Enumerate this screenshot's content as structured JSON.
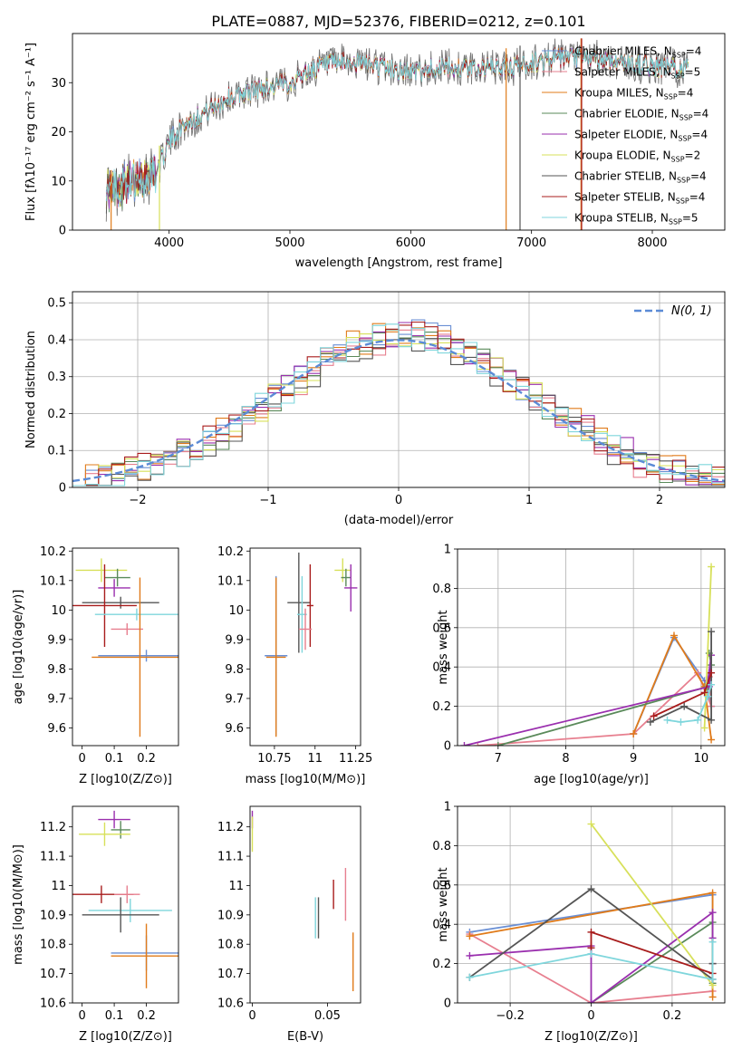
{
  "figure_title": "PLATE=0887, MJD=52376, FIBERID=0212, z=0.101",
  "colors": {
    "Chabrier MILES": "#6a8fd4",
    "Salpeter MILES": "#e77f8f",
    "Kroupa MILES": "#e07b1a",
    "Chabrier ELODIE": "#5a8a5a",
    "Salpeter ELODIE": "#9a2fae",
    "Kroupa ELODIE": "#d7e05a",
    "Chabrier STELIB": "#555555",
    "Salpeter STELIB": "#a81c1c",
    "Kroupa STELIB": "#7fd6dc"
  },
  "chart_data": [
    {
      "id": "spectrum",
      "type": "line",
      "title": "PLATE=0887, MJD=52376, FIBERID=0212, z=0.101",
      "xlabel": "wavelength [Angstrom, rest frame]",
      "ylabel": "Flux [fλ10⁻¹⁷ erg cm⁻² s⁻¹ A⁻¹]",
      "xlim": [
        3200,
        8600
      ],
      "ylim": [
        0,
        40
      ],
      "xticks": [
        4000,
        5000,
        6000,
        7000,
        8000
      ],
      "yticks": [
        0,
        10,
        20,
        30
      ],
      "grid": false,
      "legend_position": "top-right",
      "legend": [
        "Chabrier MILES, N_SSP=4",
        "Salpeter MILES, N_SSP=5",
        "Kroupa MILES, N_SSP=4",
        "Chabrier ELODIE, N_SSP=4",
        "Salpeter ELODIE, N_SSP=4",
        "Kroupa ELODIE, N_SSP=2",
        "Chabrier STELIB, N_SSP=4",
        "Salpeter STELIB, N_SSP=4",
        "Kroupa STELIB, N_SSP=5"
      ],
      "continuum": {
        "x": [
          3500,
          3700,
          3900,
          4000,
          4100,
          4300,
          4500,
          4800,
          5000,
          5200,
          5400,
          5600,
          5800,
          6000,
          6200,
          6500,
          6800,
          7000,
          7200,
          7500,
          7800,
          8100,
          8300
        ],
        "y": [
          8,
          10,
          12,
          18,
          21,
          24,
          27,
          29,
          30,
          33,
          34,
          34,
          33,
          32,
          33,
          33,
          33,
          34,
          35,
          35,
          34,
          33,
          33
        ]
      }
    },
    {
      "id": "residual_histogram",
      "type": "line",
      "xlabel": "(data-model)/error",
      "ylabel": "Normed distribution",
      "xlim": [
        -2.5,
        2.5
      ],
      "ylim": [
        0,
        0.53
      ],
      "xticks": [
        -2,
        -1,
        0,
        1,
        2
      ],
      "yticks": [
        0.0,
        0.1,
        0.2,
        0.3,
        0.4,
        0.5
      ],
      "grid": true,
      "legend_position": "top-right",
      "reference_label": "N(0, 1)",
      "bin_width": 0.1,
      "bin_start": -2.5,
      "series_offsets": [
        0.01,
        -0.02,
        0.015,
        -0.01,
        0.02,
        0.0,
        -0.015,
        0.005,
        -0.005
      ]
    },
    {
      "id": "age_vs_Z",
      "type": "scatter",
      "xlabel": "Z [log10(Z/Z⊙)]",
      "ylabel": "age [log10(age/yr)]",
      "xlim": [
        -0.03,
        0.3
      ],
      "ylim": [
        9.54,
        10.21
      ],
      "xticks": [
        0.0,
        0.1,
        0.2
      ],
      "yticks": [
        9.6,
        9.7,
        9.8,
        9.9,
        10.0,
        10.1,
        10.2
      ],
      "points": [
        {
          "series": "Kroupa ELODIE",
          "x": 0.06,
          "y": 10.135,
          "xerr": 0.08,
          "yerr": 0.04
        },
        {
          "series": "Chabrier ELODIE",
          "x": 0.11,
          "y": 10.11,
          "xerr": 0.04,
          "yerr": 0.03
        },
        {
          "series": "Salpeter ELODIE",
          "x": 0.1,
          "y": 10.075,
          "xerr": 0.05,
          "yerr": 0.03
        },
        {
          "series": "Chabrier STELIB",
          "x": 0.12,
          "y": 10.025,
          "xerr": 0.12,
          "yerr": 0.02
        },
        {
          "series": "Salpeter STELIB",
          "x": 0.07,
          "y": 10.015,
          "xerr": 0.1,
          "yerr": 0.14
        },
        {
          "series": "Kroupa STELIB",
          "x": 0.17,
          "y": 9.985,
          "xerr": 0.13,
          "yerr": 0.02
        },
        {
          "series": "Salpeter MILES",
          "x": 0.14,
          "y": 9.935,
          "xerr": 0.05,
          "yerr": 0.02
        },
        {
          "series": "Chabrier MILES",
          "x": 0.2,
          "y": 9.845,
          "xerr": 0.15,
          "yerr": 0.02
        },
        {
          "series": "Kroupa MILES",
          "x": 0.18,
          "y": 9.84,
          "xerr": 0.15,
          "yerr": 0.27
        }
      ]
    },
    {
      "id": "age_vs_mass",
      "type": "scatter",
      "xlabel": "mass [log10(M/M⊙)]",
      "ylabel": "",
      "xlim": [
        10.6,
        11.28
      ],
      "ylim": [
        9.54,
        10.21
      ],
      "xticks": [
        10.75,
        11.0,
        11.25
      ],
      "yticks": [
        9.6,
        9.7,
        9.8,
        9.9,
        10.0,
        10.1,
        10.2
      ],
      "points": [
        {
          "series": "Kroupa ELODIE",
          "x": 11.17,
          "y": 10.135,
          "xerr": 0.05,
          "yerr": 0.04
        },
        {
          "series": "Chabrier ELODIE",
          "x": 11.19,
          "y": 10.11,
          "xerr": 0.03,
          "yerr": 0.03
        },
        {
          "series": "Salpeter ELODIE",
          "x": 11.22,
          "y": 10.075,
          "xerr": 0.04,
          "yerr": 0.08
        },
        {
          "series": "Chabrier STELIB",
          "x": 10.9,
          "y": 10.025,
          "xerr": 0.07,
          "yerr": 0.17
        },
        {
          "series": "Salpeter STELIB",
          "x": 10.97,
          "y": 10.015,
          "xerr": 0.02,
          "yerr": 0.14
        },
        {
          "series": "Kroupa STELIB",
          "x": 10.92,
          "y": 9.985,
          "xerr": 0.03,
          "yerr": 0.13
        },
        {
          "series": "Salpeter MILES",
          "x": 10.94,
          "y": 9.935,
          "xerr": 0.04,
          "yerr": 0.07
        },
        {
          "series": "Chabrier MILES",
          "x": 10.76,
          "y": 9.845,
          "xerr": 0.07,
          "yerr": 0.27
        },
        {
          "series": "Kroupa MILES",
          "x": 10.76,
          "y": 9.84,
          "xerr": 0.06,
          "yerr": 0.27
        }
      ]
    },
    {
      "id": "weight_vs_age",
      "type": "line",
      "xlabel": "age [log10(age/yr)]",
      "ylabel": "mass weight",
      "xlim": [
        6.4,
        10.35
      ],
      "ylim": [
        0,
        1.0
      ],
      "xticks": [
        7,
        8,
        9,
        10
      ],
      "yticks": [
        0.0,
        0.2,
        0.4,
        0.6,
        0.8,
        1.0
      ],
      "grid": true,
      "series": [
        {
          "name": "Chabrier MILES",
          "x": [
            9.0,
            9.6,
            10.05,
            10.15
          ],
          "y": [
            0.06,
            0.55,
            0.33,
            0.2
          ]
        },
        {
          "name": "Salpeter MILES",
          "x": [
            6.7,
            9.0,
            9.95,
            10.15,
            10.12
          ],
          "y": [
            0.0,
            0.06,
            0.37,
            0.2,
            0.35
          ]
        },
        {
          "name": "Kroupa MILES",
          "x": [
            9.0,
            9.6,
            10.05,
            10.15
          ],
          "y": [
            0.06,
            0.56,
            0.3,
            0.03
          ]
        },
        {
          "name": "Chabrier ELODIE",
          "x": [
            7.0,
            10.1,
            10.15,
            10.12
          ],
          "y": [
            0.0,
            0.3,
            0.41,
            0.47
          ]
        },
        {
          "name": "Salpeter ELODIE",
          "x": [
            6.5,
            10.12,
            10.15,
            10.1
          ],
          "y": [
            0.0,
            0.3,
            0.46,
            0.33
          ]
        },
        {
          "name": "Kroupa ELODIE",
          "x": [
            10.05,
            10.15
          ],
          "y": [
            0.09,
            0.91
          ]
        },
        {
          "name": "Chabrier STELIB",
          "x": [
            9.25,
            9.75,
            10.15,
            10.15
          ],
          "y": [
            0.12,
            0.2,
            0.13,
            0.58
          ]
        },
        {
          "name": "Salpeter STELIB",
          "x": [
            9.3,
            10.05,
            10.15
          ],
          "y": [
            0.15,
            0.27,
            0.37
          ]
        },
        {
          "name": "Kroupa STELIB",
          "x": [
            9.5,
            9.7,
            9.95,
            10.1,
            10.15
          ],
          "y": [
            0.13,
            0.12,
            0.13,
            0.25,
            0.31
          ]
        }
      ]
    },
    {
      "id": "mass_vs_Z",
      "type": "scatter",
      "xlabel": "Z [log10(Z/Z⊙)]",
      "ylabel": "mass [log10(M/M⊙)]",
      "xlim": [
        -0.03,
        0.3
      ],
      "ylim": [
        10.6,
        11.27
      ],
      "xticks": [
        0.0,
        0.1,
        0.2
      ],
      "yticks": [
        10.6,
        10.7,
        10.8,
        10.9,
        11.0,
        11.1,
        11.2
      ],
      "points": [
        {
          "series": "Salpeter ELODIE",
          "x": 0.1,
          "y": 11.225,
          "xerr": 0.05,
          "yerr": 0.03
        },
        {
          "series": "Chabrier ELODIE",
          "x": 0.12,
          "y": 11.19,
          "xerr": 0.03,
          "yerr": 0.03
        },
        {
          "series": "Kroupa ELODIE",
          "x": 0.07,
          "y": 11.175,
          "xerr": 0.08,
          "yerr": 0.04
        },
        {
          "series": "Salpeter STELIB",
          "x": 0.06,
          "y": 10.97,
          "xerr": 0.1,
          "yerr": 0.03
        },
        {
          "series": "Salpeter MILES",
          "x": 0.14,
          "y": 10.97,
          "xerr": 0.04,
          "yerr": 0.03
        },
        {
          "series": "Kroupa STELIB",
          "x": 0.15,
          "y": 10.915,
          "xerr": 0.13,
          "yerr": 0.04
        },
        {
          "series": "Chabrier STELIB",
          "x": 0.12,
          "y": 10.9,
          "xerr": 0.12,
          "yerr": 0.06
        },
        {
          "series": "Chabrier MILES",
          "x": 0.2,
          "y": 10.77,
          "xerr": 0.11,
          "yerr": 0.06
        },
        {
          "series": "Kroupa MILES",
          "x": 0.2,
          "y": 10.76,
          "xerr": 0.11,
          "yerr": 0.11
        }
      ]
    },
    {
      "id": "mass_vs_EBV",
      "type": "scatter",
      "xlabel": "E(B-V)",
      "ylabel": "",
      "xlim": [
        -0.0015,
        0.072
      ],
      "ylim": [
        10.6,
        11.27
      ],
      "xticks": [
        0.0,
        0.05
      ],
      "yticks": [
        10.6,
        10.7,
        10.8,
        10.9,
        11.0,
        11.1,
        11.2
      ],
      "points": [
        {
          "series": "Salpeter ELODIE",
          "x": 0.0,
          "y": 11.225,
          "xerr": 0,
          "yerr": 0.03
        },
        {
          "series": "Kroupa ELODIE",
          "x": 0.0,
          "y": 11.175,
          "xerr": 0,
          "yerr": 0.06
        },
        {
          "series": "Salpeter STELIB",
          "x": 0.054,
          "y": 10.97,
          "xerr": 0,
          "yerr": 0.05
        },
        {
          "series": "Salpeter MILES",
          "x": 0.062,
          "y": 10.97,
          "xerr": 0,
          "yerr": 0.09
        },
        {
          "series": "Kroupa STELIB",
          "x": 0.042,
          "y": 10.89,
          "xerr": 0,
          "yerr": 0.07
        },
        {
          "series": "Chabrier STELIB",
          "x": 0.044,
          "y": 10.89,
          "xerr": 0,
          "yerr": 0.07
        },
        {
          "series": "Kroupa MILES",
          "x": 0.067,
          "y": 10.74,
          "xerr": 0,
          "yerr": 0.1
        }
      ]
    },
    {
      "id": "weight_vs_Z",
      "type": "line",
      "xlabel": "Z [log10(Z/Z⊙)]",
      "ylabel": "mass weight",
      "xlim": [
        -0.33,
        0.33
      ],
      "ylim": [
        0,
        1.0
      ],
      "xticks": [
        -0.2,
        0.0,
        0.2
      ],
      "yticks": [
        0.0,
        0.2,
        0.4,
        0.6,
        0.8,
        1.0
      ],
      "grid": true,
      "series": [
        {
          "name": "Chabrier MILES",
          "x": [
            -0.3,
            0.3,
            0.3
          ],
          "y": [
            0.36,
            0.55,
            0.2
          ]
        },
        {
          "name": "Salpeter MILES",
          "x": [
            -0.3,
            0.0,
            0.3,
            0.3
          ],
          "y": [
            0.35,
            0.0,
            0.06,
            0.2
          ]
        },
        {
          "name": "Kroupa MILES",
          "x": [
            -0.3,
            0.3,
            0.3
          ],
          "y": [
            0.34,
            0.56,
            0.03
          ]
        },
        {
          "name": "Chabrier ELODIE",
          "x": [
            0.0,
            0.3,
            0.3
          ],
          "y": [
            0.0,
            0.41,
            0.1
          ]
        },
        {
          "name": "Salpeter ELODIE",
          "x": [
            -0.3,
            0.0,
            0.0,
            0.3,
            0.3
          ],
          "y": [
            0.24,
            0.29,
            0.0,
            0.46,
            0.33
          ]
        },
        {
          "name": "Kroupa ELODIE",
          "x": [
            0.0,
            0.3
          ],
          "y": [
            0.91,
            0.09
          ]
        },
        {
          "name": "Chabrier STELIB",
          "x": [
            -0.3,
            0.0,
            0.3,
            0.3
          ],
          "y": [
            0.13,
            0.58,
            0.12,
            0.2
          ]
        },
        {
          "name": "Salpeter STELIB",
          "x": [
            0.0,
            0.0,
            0.3
          ],
          "y": [
            0.28,
            0.36,
            0.15
          ]
        },
        {
          "name": "Kroupa STELIB",
          "x": [
            -0.3,
            0.0,
            0.3,
            0.3
          ],
          "y": [
            0.13,
            0.25,
            0.12,
            0.31
          ]
        }
      ]
    }
  ]
}
